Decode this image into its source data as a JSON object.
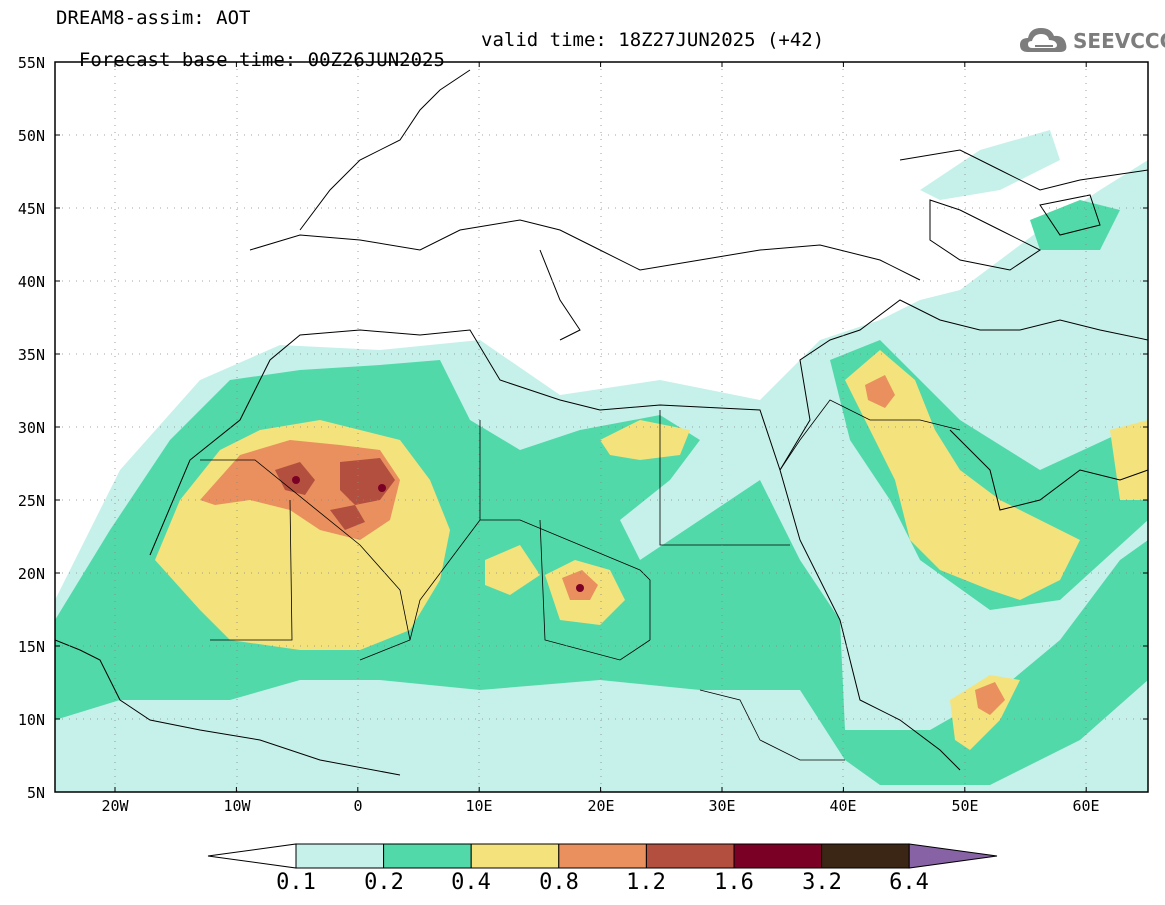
{
  "header": {
    "line1": "DREAM8-assim: AOT",
    "base_time": "Forecast base time: 00Z26JUN2025",
    "valid_time": "valid time: 18Z27JUN2025 (+42)"
  },
  "logo": {
    "text": "SEEVCCC",
    "icon": "cloud-icon"
  },
  "axes": {
    "lat_labels": [
      "55N",
      "50N",
      "45N",
      "40N",
      "35N",
      "30N",
      "25N",
      "20N",
      "15N",
      "10N",
      "5N"
    ],
    "lon_labels": [
      "20W",
      "10W",
      "0",
      "10E",
      "20E",
      "30E",
      "40E",
      "50E",
      "60E"
    ],
    "lat_range": [
      5,
      55
    ],
    "lon_range": [
      -25,
      65
    ]
  },
  "colorbar": {
    "levels": [
      "0.1",
      "0.2",
      "0.4",
      "0.8",
      "1.2",
      "1.6",
      "3.2",
      "6.4"
    ],
    "colors": [
      "#c6f1ea",
      "#52d9a9",
      "#f4e27c",
      "#e9905e",
      "#b34f3f",
      "#7a0025",
      "#3b2616",
      "#8763a6"
    ]
  },
  "field": {
    "description_levels": "AOT contour bands",
    "c1": "#c6f1ea",
    "c2": "#52d9a9",
    "c3": "#f4e27c",
    "c4": "#e9905e",
    "c5": "#b34f3f",
    "c6": "#7a0025"
  }
}
